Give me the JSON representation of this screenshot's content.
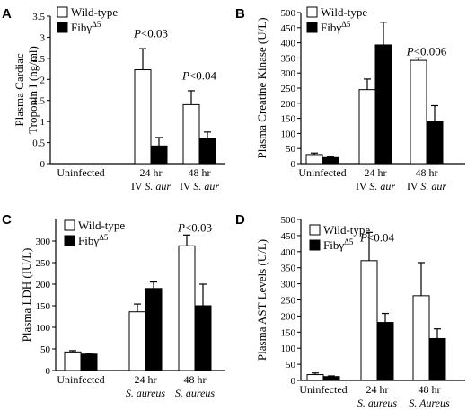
{
  "colors": {
    "wild_type": "#ffffff",
    "mutant": "#000000",
    "stroke": "#000000"
  },
  "chart_data": [
    {
      "panel": "A",
      "type": "bar",
      "ylabel_lines": [
        "Plasma Cardiac",
        "Troponin I (ng/ml)"
      ],
      "yticks": [
        "0",
        "0.5",
        "1",
        "1.5",
        "2",
        "2.5",
        "3",
        "3.5"
      ],
      "ylim": [
        0,
        3.5
      ],
      "categories": [
        {
          "line1": "Uninfected",
          "line2": "",
          "line2_italic": ""
        },
        {
          "line1": "24 hr",
          "line2": "IV ",
          "line2_italic": "S. aur"
        },
        {
          "line1": "48 hr",
          "line2": "IV ",
          "line2_italic": "S. aur"
        }
      ],
      "legend": {
        "wild_type": "Wild-type",
        "mutant_base": "Fibγ",
        "mutant_sup": "Δ5"
      },
      "series": [
        {
          "key": "wild_type",
          "values": [
            0,
            2.23,
            1.4
          ],
          "errors": [
            0,
            0.5,
            0.33
          ]
        },
        {
          "key": "mutant",
          "values": [
            0,
            0.42,
            0.6
          ],
          "errors": [
            0,
            0.2,
            0.15
          ]
        }
      ],
      "annotations": [
        {
          "p": "P",
          "text": "<0.03",
          "category": 1,
          "value": 3.0
        },
        {
          "p": "P",
          "text": "<0.04",
          "category": 2,
          "value": 2.0
        }
      ]
    },
    {
      "panel": "B",
      "type": "bar",
      "ylabel_lines": [
        "Plasma Creatine Kinase (U/L)"
      ],
      "yticks": [
        "0",
        "50",
        "100",
        "150",
        "200",
        "250",
        "300",
        "350",
        "400",
        "450",
        "500"
      ],
      "ylim": [
        0,
        500
      ],
      "categories": [
        {
          "line1": "Uninfected",
          "line2": "",
          "line2_italic": ""
        },
        {
          "line1": "24 hr",
          "line2": "IV ",
          "line2_italic": "S. aur"
        },
        {
          "line1": "48 hr",
          "line2": "IV ",
          "line2_italic": "S. aur"
        }
      ],
      "legend": {
        "wild_type": "Wild-type",
        "mutant_base": "Fibγ",
        "mutant_sup": "Δ5"
      },
      "series": [
        {
          "key": "wild_type",
          "values": [
            30,
            245,
            342
          ],
          "errors": [
            5,
            35,
            8
          ]
        },
        {
          "key": "mutant",
          "values": [
            20,
            393,
            140
          ],
          "errors": [
            3,
            75,
            52
          ]
        }
      ],
      "annotations": [
        {
          "p": "P",
          "text": "<0.006",
          "category": 2,
          "value": 358
        }
      ]
    },
    {
      "panel": "C",
      "type": "bar",
      "ylabel_lines": [
        "Plasma LDH (IU/L)"
      ],
      "yticks": [
        "0",
        "50",
        "100",
        "150",
        "200",
        "250",
        "300"
      ],
      "ylim": [
        0,
        350
      ],
      "categories": [
        {
          "line1": "Uninfected",
          "line2": "",
          "line2_italic": ""
        },
        {
          "line1": "24 hr",
          "line2": "",
          "line2_italic": "S. aureus"
        },
        {
          "line1": "48 hr",
          "line2": "",
          "line2_italic": "S. aureus"
        }
      ],
      "legend": {
        "wild_type": "Wild-type",
        "mutant_base": "Fibγ",
        "mutant_sup": "Δ5"
      },
      "series": [
        {
          "key": "wild_type",
          "values": [
            43,
            136,
            289
          ],
          "errors": [
            3,
            18,
            25
          ]
        },
        {
          "key": "mutant",
          "values": [
            38,
            190,
            150
          ],
          "errors": [
            2,
            15,
            50
          ]
        }
      ],
      "annotations": [
        {
          "p": "P",
          "text": "<0.03",
          "category": 2,
          "value": 322
        }
      ]
    },
    {
      "panel": "D",
      "type": "bar",
      "ylabel_lines": [
        "Plasma AST Levels (U/L)"
      ],
      "yticks": [
        "0",
        "50",
        "100",
        "150",
        "200",
        "250",
        "300",
        "350",
        "400",
        "450",
        "500"
      ],
      "ylim": [
        0,
        500
      ],
      "categories": [
        {
          "line1": "Uninfected",
          "line2": "",
          "line2_italic": ""
        },
        {
          "line1": "24 hr",
          "line2": "",
          "line2_italic": "S. aureus"
        },
        {
          "line1": "48 hr",
          "line2": "",
          "line2_italic": "S. Aureus"
        }
      ],
      "legend": {
        "wild_type": "Wild-type",
        "mutant_base": "Fibγ",
        "mutant_sup": "Δ5"
      },
      "series": [
        {
          "key": "wild_type",
          "values": [
            18,
            372,
            263
          ],
          "errors": [
            5,
            88,
            103
          ]
        },
        {
          "key": "mutant",
          "values": [
            12,
            180,
            130
          ],
          "errors": [
            2,
            28,
            30
          ]
        }
      ],
      "annotations": [
        {
          "p": "P",
          "text": "<0.04",
          "category": 1,
          "value": 432
        }
      ]
    }
  ]
}
